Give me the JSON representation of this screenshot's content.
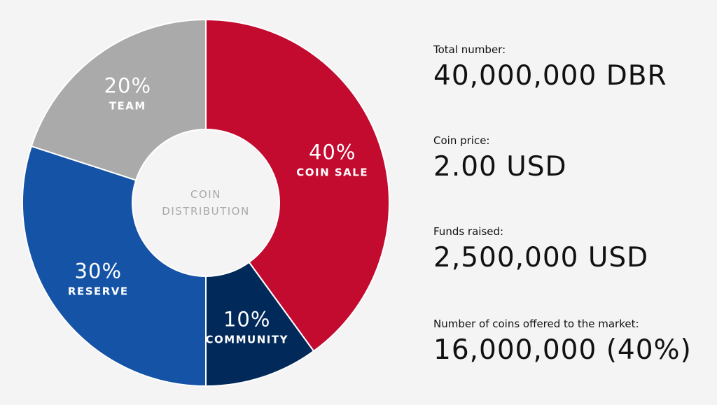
{
  "chart_data": {
    "type": "pie",
    "donut": true,
    "center_label": [
      "COIN",
      "DISTRIBUTION"
    ],
    "slices": [
      {
        "label": "COIN SALE",
        "value": 40,
        "value_label": "40%",
        "color": "#c30a2f"
      },
      {
        "label": "COMMUNITY",
        "value": 10,
        "value_label": "10%",
        "color": "#012a5a"
      },
      {
        "label": "RESERVE",
        "value": 30,
        "value_label": "30%",
        "color": "#1553a6"
      },
      {
        "label": "TEAM",
        "value": 20,
        "value_label": "20%",
        "color": "#aaaaaa"
      }
    ]
  },
  "stats": [
    {
      "label": "Total number:",
      "value": "40,000,000 DBR"
    },
    {
      "label": "Coin price:",
      "value": "2.00 USD"
    },
    {
      "label": "Funds raised:",
      "value": "2,500,000 USD"
    },
    {
      "label": "Number of coins offered to the market:",
      "value": "16,000,000 (40%)"
    }
  ]
}
